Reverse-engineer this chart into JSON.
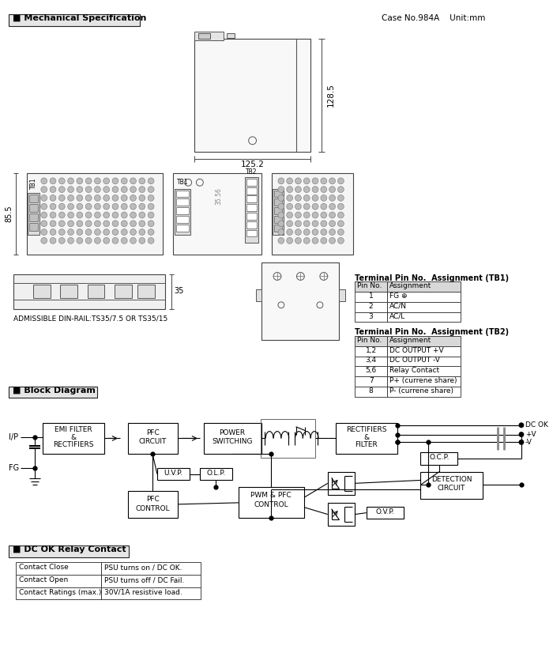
{
  "bg_color": "#ffffff",
  "case_info": "Case No.984A    Unit:mm",
  "dim_125": "125.2",
  "dim_128": "128.5",
  "dim_85": "85.5",
  "dim_35": "35",
  "din_rail_text": "ADMISSIBLE DIN-RAIL:TS35/7.5 OR TS35/15",
  "tb1_title": "Terminal Pin No.  Assignment (TB1)",
  "tb1_headers": [
    "Pin No.",
    "Assignment"
  ],
  "tb1_rows": [
    [
      "1",
      "FG ⊕"
    ],
    [
      "2",
      "AC/N"
    ],
    [
      "3",
      "AC/L"
    ]
  ],
  "tb2_title": "Terminal Pin No.  Assignment (TB2)",
  "tb2_headers": [
    "Pin No.",
    "Assignment"
  ],
  "tb2_rows": [
    [
      "1,2",
      "DC OUTPUT +V"
    ],
    [
      "3,4",
      "DC OUTPUT -V"
    ],
    [
      "5,6",
      "Relay Contact"
    ],
    [
      "7",
      "P+ (currene share)"
    ],
    [
      "8",
      "P- (currene share)"
    ]
  ],
  "relay_rows": [
    [
      "Contact Close",
      "PSU turns on / DC OK."
    ],
    [
      "Contact Open",
      "PSU turns off / DC Fail."
    ],
    [
      "Contact Ratings (max.)",
      "30V/1A resistive load."
    ]
  ]
}
